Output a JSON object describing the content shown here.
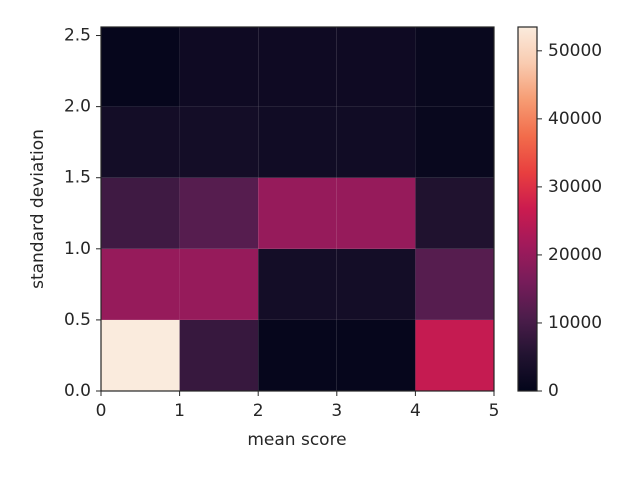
{
  "chart_data": {
    "type": "hist2d",
    "xlabel": "mean score",
    "ylabel": "standard deviation",
    "xbins": [
      0,
      1,
      2,
      3,
      4,
      5
    ],
    "ybins": [
      0,
      0.5,
      1,
      1.5,
      2,
      2.56
    ],
    "values": [
      [
        53500,
        8000,
        500,
        500,
        26000
      ],
      [
        20000,
        20000,
        3000,
        3000,
        12000
      ],
      [
        9000,
        12000,
        20000,
        20000,
        5000
      ],
      [
        3000,
        3000,
        2500,
        2500,
        1000
      ],
      [
        500,
        2000,
        2000,
        2000,
        1000
      ]
    ],
    "xlim": [
      0,
      5
    ],
    "xticks": [
      0,
      1,
      2,
      3,
      4,
      5
    ],
    "ylim": [
      0,
      2.56
    ],
    "yticks": [
      {
        "value": 0,
        "label": "0.0"
      },
      {
        "value": 0.5,
        "label": "0.5"
      },
      {
        "value": 1,
        "label": "1.0"
      },
      {
        "value": 1.5,
        "label": "1.5"
      },
      {
        "value": 2,
        "label": "2.0"
      },
      {
        "value": 2.5,
        "label": "2.5"
      }
    ],
    "colormap": "rocket",
    "clim": [
      0,
      53500
    ],
    "cticks": [
      0,
      10000,
      20000,
      30000,
      40000,
      50000
    ]
  }
}
